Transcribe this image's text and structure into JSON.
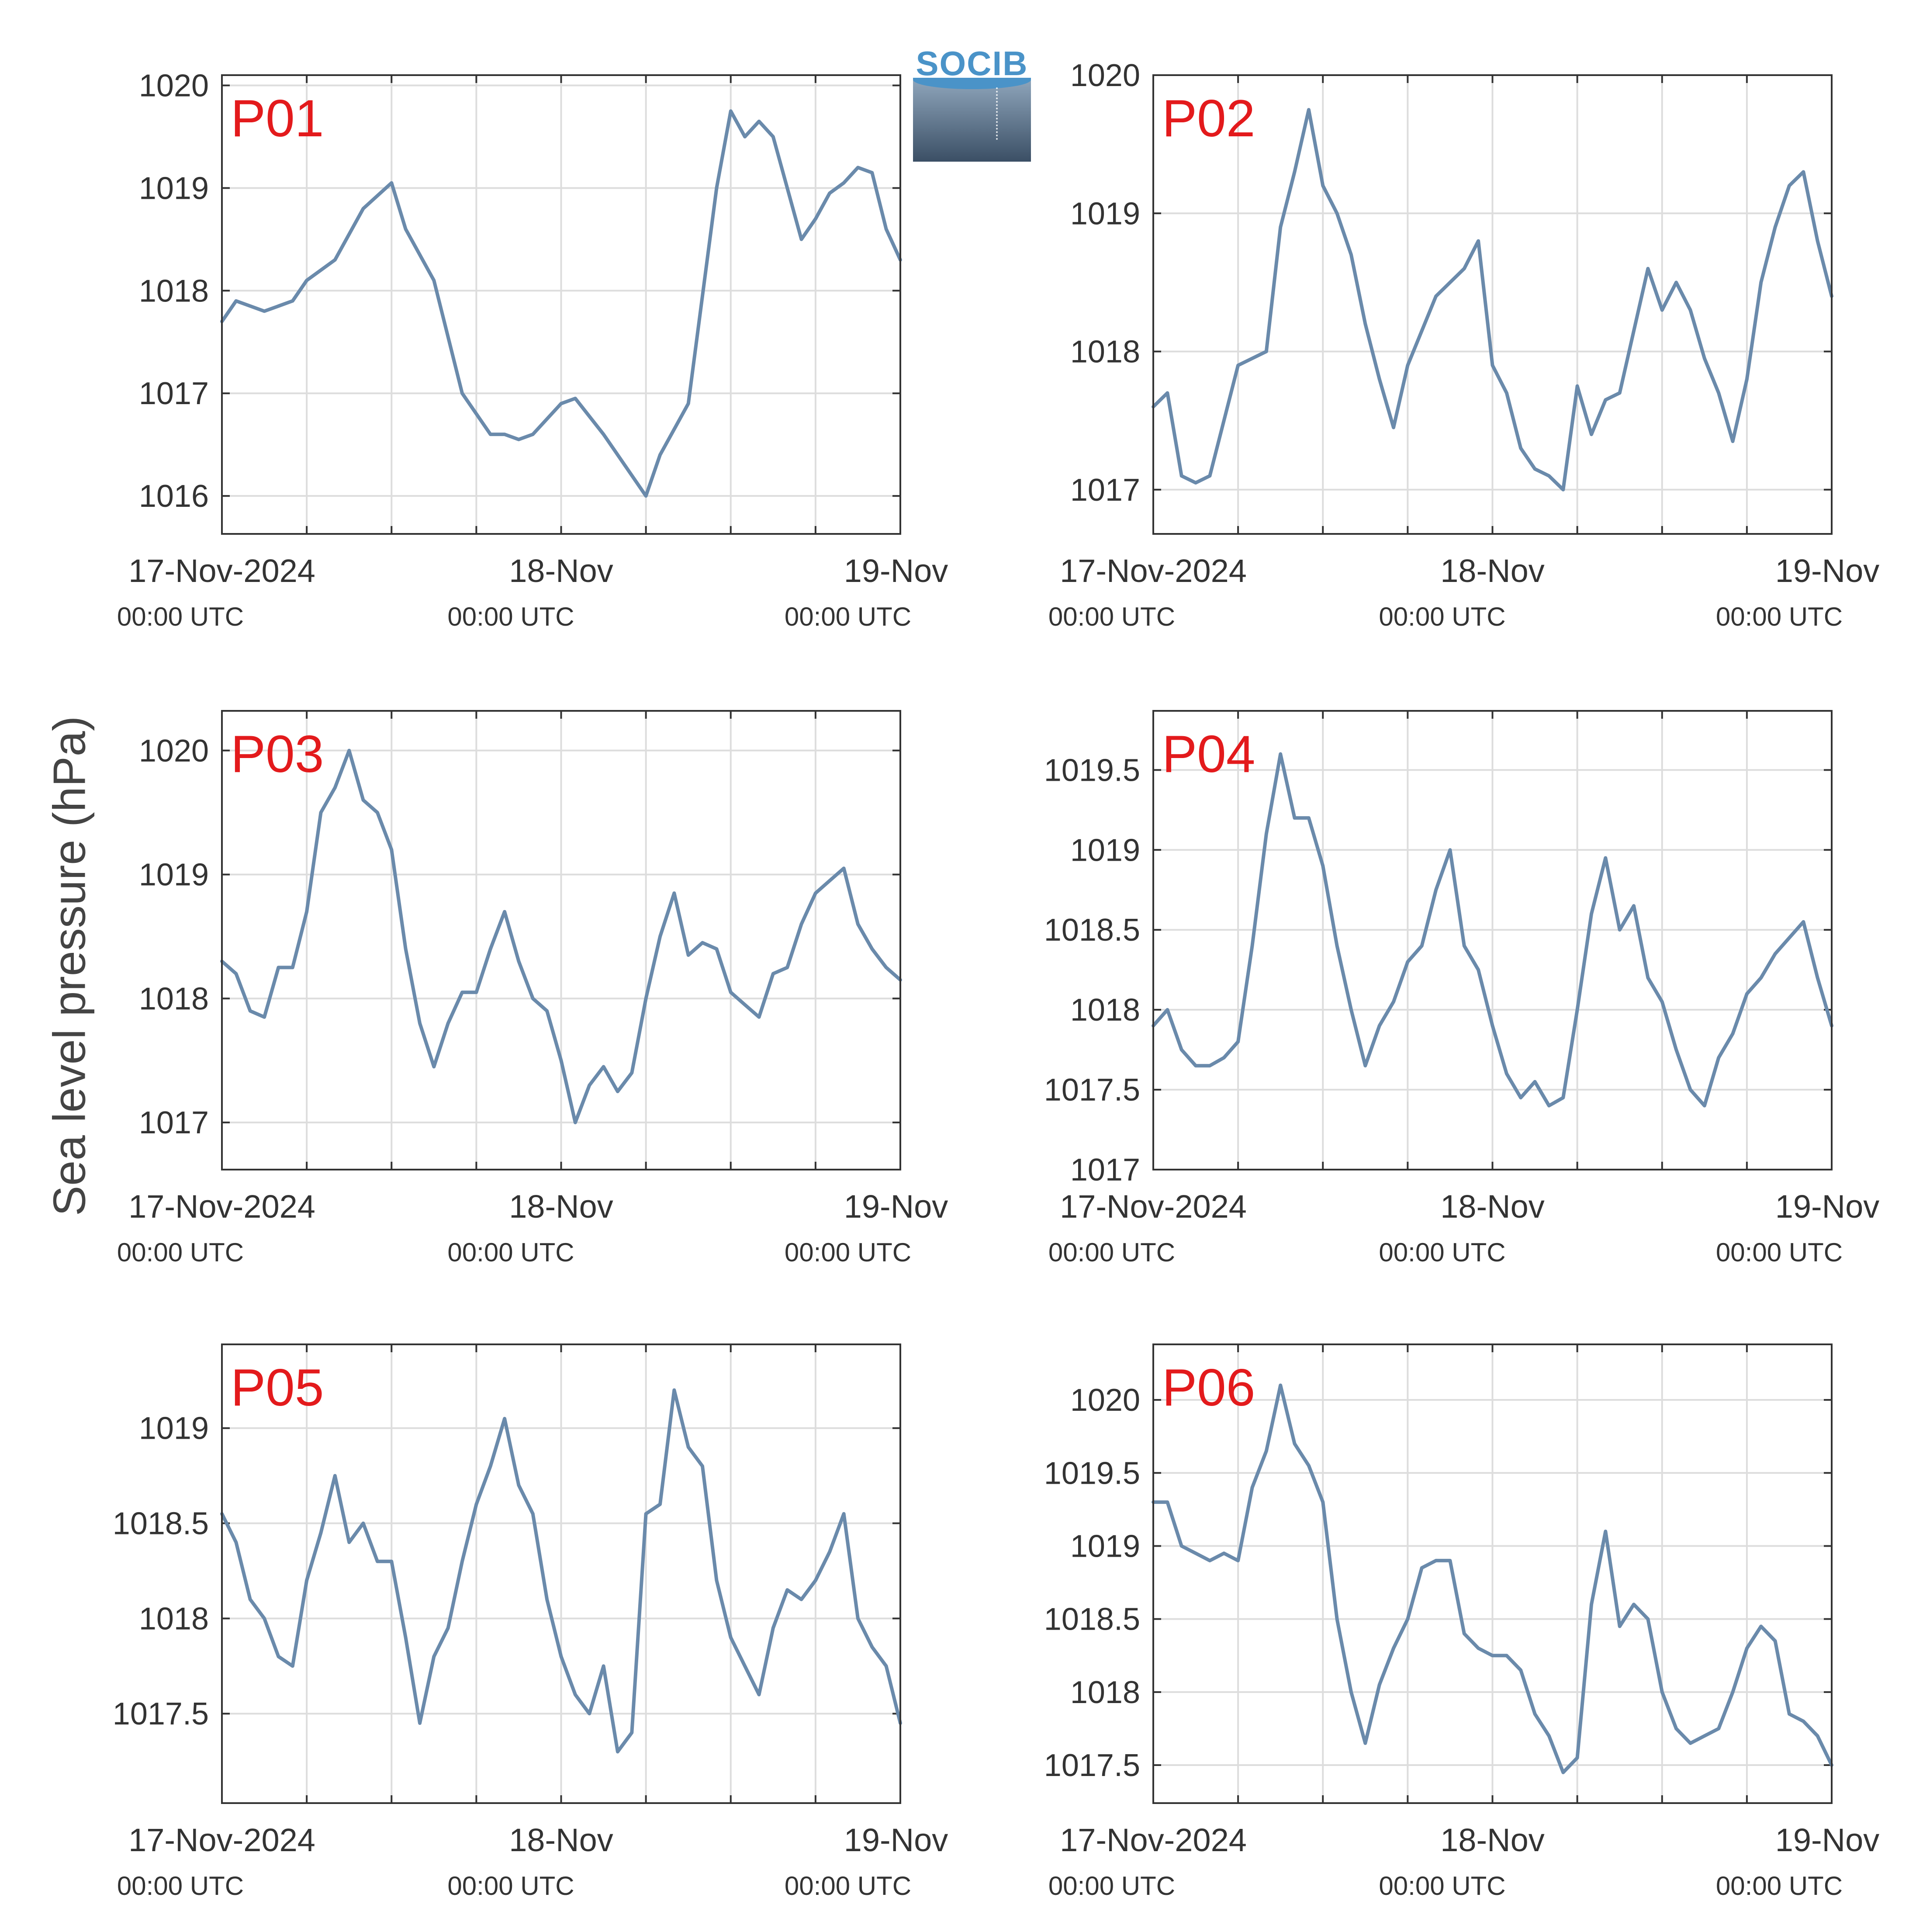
{
  "y_axis_label": "Sea level pressure (hPa)",
  "logo": {
    "text": "SOCIB"
  },
  "x_ticks": [
    {
      "date": "17-Nov-2024",
      "time": "00:00 UTC"
    },
    {
      "date": "18-Nov",
      "time": "00:00 UTC"
    },
    {
      "date": "19-Nov",
      "time": "00:00 UTC"
    }
  ],
  "style": {
    "line_color": "#6a8aab",
    "label_color": "#e31a1c",
    "grid_color": "#dddddd",
    "axis_color": "#333333",
    "text_color": "#333333"
  },
  "chart_data": [
    {
      "type": "line",
      "label": "P01",
      "xlim": [
        "2024-11-17T00:00",
        "2024-11-19T00:00"
      ],
      "ylim": [
        1015.63,
        1020.1
      ],
      "yticks": [
        1016,
        1017,
        1018,
        1019,
        1020
      ],
      "ytick_labels": [
        "1016",
        "1017",
        "1018",
        "1019",
        "1020"
      ],
      "x_hours": [
        0,
        1,
        3,
        5,
        6,
        8,
        10,
        12,
        13,
        15,
        17,
        19,
        20,
        21,
        22,
        24,
        25,
        27,
        29,
        30,
        31,
        33,
        35,
        36,
        37,
        38,
        39,
        40,
        41,
        42,
        43,
        44,
        45,
        46,
        47,
        48
      ],
      "values": [
        1017.7,
        1017.9,
        1017.8,
        1017.9,
        1018.1,
        1018.3,
        1018.8,
        1019.05,
        1018.6,
        1018.1,
        1017.0,
        1016.6,
        1016.6,
        1016.55,
        1016.6,
        1016.9,
        1016.95,
        1016.6,
        1016.2,
        1016.0,
        1016.4,
        1016.9,
        1019.0,
        1019.75,
        1019.5,
        1019.65,
        1019.5,
        1019.0,
        1018.5,
        1018.7,
        1018.95,
        1019.05,
        1019.2,
        1019.15,
        1018.6,
        1018.3
      ]
    },
    {
      "type": "line",
      "label": "P02",
      "xlim": [
        "2024-11-17T00:00",
        "2024-11-19T00:00"
      ],
      "ylim": [
        1016.68,
        1020.0
      ],
      "yticks": [
        1017,
        1018,
        1019,
        1020
      ],
      "ytick_labels": [
        "1017",
        "1018",
        "1019",
        "1020"
      ],
      "x_hours": [
        0,
        1,
        2,
        3,
        4,
        6,
        8,
        9,
        10,
        11,
        12,
        13,
        14,
        15,
        16,
        17,
        18,
        20,
        21,
        22,
        23,
        24,
        25,
        26,
        27,
        28,
        29,
        30,
        31,
        32,
        33,
        35,
        36,
        37,
        38,
        39,
        40,
        41,
        42,
        43,
        44,
        45,
        46,
        47,
        48
      ],
      "values": [
        1017.6,
        1017.7,
        1017.1,
        1017.05,
        1017.1,
        1017.9,
        1018.0,
        1018.9,
        1019.3,
        1019.75,
        1019.2,
        1019.0,
        1018.7,
        1018.2,
        1017.8,
        1017.45,
        1017.9,
        1018.4,
        1018.5,
        1018.6,
        1018.8,
        1017.9,
        1017.7,
        1017.3,
        1017.15,
        1017.1,
        1017.0,
        1017.75,
        1017.4,
        1017.65,
        1017.7,
        1018.6,
        1018.3,
        1018.5,
        1018.3,
        1017.95,
        1017.7,
        1017.35,
        1017.8,
        1018.5,
        1018.9,
        1019.2,
        1019.3,
        1018.8,
        1018.4
      ]
    },
    {
      "type": "line",
      "label": "P03",
      "xlim": [
        "2024-11-17T00:00",
        "2024-11-19T00:00"
      ],
      "ylim": [
        1016.62,
        1020.32
      ],
      "yticks": [
        1017,
        1018,
        1019,
        1020
      ],
      "ytick_labels": [
        "1017",
        "1018",
        "1019",
        "1020"
      ],
      "x_hours": [
        0,
        1,
        2,
        3,
        4,
        5,
        6,
        7,
        8,
        9,
        10,
        11,
        12,
        13,
        14,
        15,
        16,
        17,
        18,
        19,
        20,
        21,
        22,
        23,
        24,
        25,
        26,
        27,
        28,
        29,
        30,
        31,
        32,
        33,
        34,
        35,
        36,
        37,
        38,
        39,
        40,
        41,
        42,
        43,
        44,
        45,
        46,
        47,
        48
      ],
      "values": [
        1018.3,
        1018.2,
        1017.9,
        1017.85,
        1018.25,
        1018.25,
        1018.7,
        1019.5,
        1019.7,
        1020.0,
        1019.6,
        1019.5,
        1019.2,
        1018.4,
        1017.8,
        1017.45,
        1017.8,
        1018.05,
        1018.05,
        1018.4,
        1018.7,
        1018.3,
        1018.0,
        1017.9,
        1017.5,
        1017.0,
        1017.3,
        1017.45,
        1017.25,
        1017.4,
        1018.0,
        1018.5,
        1018.85,
        1018.35,
        1018.45,
        1018.4,
        1018.05,
        1017.95,
        1017.85,
        1018.2,
        1018.25,
        1018.6,
        1018.85,
        1018.95,
        1019.05,
        1018.6,
        1018.4,
        1018.25,
        1018.15
      ]
    },
    {
      "type": "line",
      "label": "P04",
      "xlim": [
        "2024-11-17T00:00",
        "2024-11-19T00:00"
      ],
      "ylim": [
        1017.0,
        1019.87
      ],
      "yticks": [
        1017,
        1017.5,
        1018,
        1018.5,
        1019,
        1019.5
      ],
      "ytick_labels": [
        "1017",
        "1017.5",
        "1018",
        "1018.5",
        "1019",
        "1019.5"
      ],
      "x_hours": [
        0,
        1,
        2,
        3,
        4,
        5,
        6,
        7,
        8,
        9,
        10,
        11,
        12,
        13,
        14,
        15,
        16,
        17,
        18,
        19,
        20,
        21,
        22,
        23,
        24,
        25,
        26,
        27,
        28,
        29,
        30,
        31,
        32,
        33,
        34,
        35,
        36,
        37,
        38,
        39,
        40,
        41,
        42,
        43,
        44,
        45,
        46,
        47,
        48
      ],
      "values": [
        1017.9,
        1018.0,
        1017.75,
        1017.65,
        1017.65,
        1017.7,
        1017.8,
        1018.4,
        1019.1,
        1019.6,
        1019.2,
        1019.2,
        1018.9,
        1018.4,
        1018.0,
        1017.65,
        1017.9,
        1018.05,
        1018.3,
        1018.4,
        1018.75,
        1019.0,
        1018.4,
        1018.25,
        1017.9,
        1017.6,
        1017.45,
        1017.55,
        1017.4,
        1017.45,
        1018.0,
        1018.6,
        1018.95,
        1018.5,
        1018.65,
        1018.2,
        1018.05,
        1017.75,
        1017.5,
        1017.4,
        1017.7,
        1017.85,
        1018.1,
        1018.2,
        1018.35,
        1018.45,
        1018.55,
        1018.2,
        1017.9
      ]
    },
    {
      "type": "line",
      "label": "P05",
      "xlim": [
        "2024-11-17T00:00",
        "2024-11-19T00:00"
      ],
      "ylim": [
        1017.03,
        1019.44
      ],
      "yticks": [
        1017.5,
        1018,
        1018.5,
        1019
      ],
      "ytick_labels": [
        "1017.5",
        "1018",
        "1018.5",
        "1019"
      ],
      "x_hours": [
        0,
        1,
        2,
        3,
        4,
        5,
        6,
        7,
        8,
        9,
        10,
        11,
        12,
        13,
        14,
        15,
        16,
        17,
        18,
        19,
        20,
        21,
        22,
        23,
        24,
        25,
        26,
        27,
        28,
        29,
        30,
        31,
        32,
        33,
        34,
        35,
        36,
        37,
        38,
        39,
        40,
        41,
        42,
        43,
        44,
        45,
        46,
        47,
        48
      ],
      "values": [
        1018.55,
        1018.4,
        1018.1,
        1018.0,
        1017.8,
        1017.75,
        1018.2,
        1018.45,
        1018.75,
        1018.4,
        1018.5,
        1018.3,
        1018.3,
        1017.9,
        1017.45,
        1017.8,
        1017.95,
        1018.3,
        1018.6,
        1018.8,
        1019.05,
        1018.7,
        1018.55,
        1018.1,
        1017.8,
        1017.6,
        1017.5,
        1017.75,
        1017.3,
        1017.4,
        1018.55,
        1018.6,
        1019.2,
        1018.9,
        1018.8,
        1018.2,
        1017.9,
        1017.75,
        1017.6,
        1017.95,
        1018.15,
        1018.1,
        1018.2,
        1018.35,
        1018.55,
        1018.0,
        1017.85,
        1017.75,
        1017.45
      ]
    },
    {
      "type": "line",
      "label": "P06",
      "xlim": [
        "2024-11-17T00:00",
        "2024-11-19T00:00"
      ],
      "ylim": [
        1017.24,
        1020.38
      ],
      "yticks": [
        1017.5,
        1018,
        1018.5,
        1019,
        1019.5,
        1020
      ],
      "ytick_labels": [
        "1017.5",
        "1018",
        "1018.5",
        "1019",
        "1019.5",
        "1020"
      ],
      "x_hours": [
        0,
        1,
        2,
        3,
        4,
        5,
        6,
        7,
        8,
        9,
        10,
        11,
        12,
        13,
        14,
        15,
        16,
        17,
        18,
        19,
        20,
        21,
        22,
        23,
        24,
        25,
        26,
        27,
        28,
        29,
        30,
        31,
        32,
        33,
        34,
        35,
        36,
        37,
        38,
        39,
        40,
        41,
        42,
        43,
        44,
        45,
        46,
        47,
        48
      ],
      "values": [
        1019.3,
        1019.3,
        1019.0,
        1018.95,
        1018.9,
        1018.95,
        1018.9,
        1019.4,
        1019.65,
        1020.1,
        1019.7,
        1019.55,
        1019.3,
        1018.5,
        1018.0,
        1017.65,
        1018.05,
        1018.3,
        1018.5,
        1018.85,
        1018.9,
        1018.9,
        1018.4,
        1018.3,
        1018.25,
        1018.25,
        1018.15,
        1017.85,
        1017.7,
        1017.45,
        1017.55,
        1018.6,
        1019.1,
        1018.45,
        1018.6,
        1018.5,
        1018.0,
        1017.75,
        1017.65,
        1017.7,
        1017.75,
        1018.0,
        1018.3,
        1018.45,
        1018.35,
        1017.85,
        1017.8,
        1017.7,
        1017.5
      ]
    }
  ]
}
